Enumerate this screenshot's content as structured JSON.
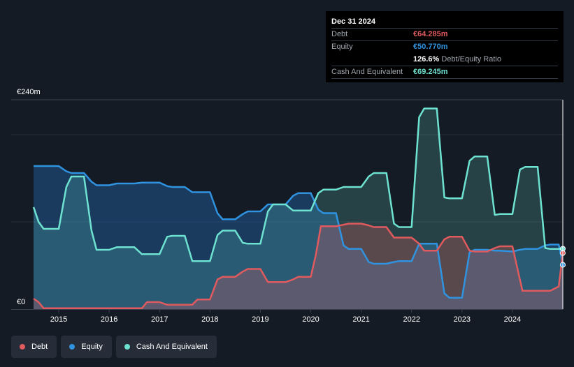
{
  "tooltip": {
    "date": "Dec 31 2024",
    "debt_label": "Debt",
    "debt_value": "€64.285m",
    "equity_label": "Equity",
    "equity_value": "€50.770m",
    "ratio_value": "126.6%",
    "ratio_label": "Debt/Equity Ratio",
    "cash_label": "Cash And Equivalent",
    "cash_value": "€69.245m"
  },
  "legend": [
    {
      "label": "Debt",
      "color": "#e05a5e"
    },
    {
      "label": "Equity",
      "color": "#2f93e0"
    },
    {
      "label": "Cash And Equivalent",
      "color": "#6ee2d0"
    }
  ],
  "chart_data": {
    "type": "area",
    "y_top_label": "€240m",
    "y_bottom_label": "€0",
    "ylim": [
      0,
      240
    ],
    "xlim": [
      2014.5,
      2025.0
    ],
    "x_ticks": [
      2015,
      2016,
      2017,
      2018,
      2019,
      2020,
      2021,
      2022,
      2023,
      2024
    ],
    "x_tick_labels": [
      "2015",
      "2016",
      "2017",
      "2018",
      "2019",
      "2020",
      "2021",
      "2022",
      "2023",
      "2024"
    ],
    "series": [
      {
        "name": "Debt",
        "color": "#e05a5e",
        "x": [
          2014.5,
          2014.6,
          2014.7,
          2015.0,
          2015.5,
          2016.0,
          2016.5,
          2016.65,
          2016.75,
          2017.0,
          2017.15,
          2017.25,
          2017.5,
          2017.65,
          2017.75,
          2018.0,
          2018.15,
          2018.25,
          2018.5,
          2018.65,
          2018.75,
          2019.0,
          2019.15,
          2019.25,
          2019.5,
          2019.65,
          2019.75,
          2020.0,
          2020.1,
          2020.2,
          2020.5,
          2020.75,
          2021.0,
          2021.15,
          2021.25,
          2021.5,
          2021.65,
          2021.75,
          2022.0,
          2022.15,
          2022.25,
          2022.5,
          2022.65,
          2022.75,
          2023.0,
          2023.15,
          2023.25,
          2023.5,
          2023.65,
          2023.75,
          2024.0,
          2024.2,
          2024.5,
          2024.75,
          2024.92,
          2025.0
        ],
        "values": [
          12,
          8,
          1,
          1,
          1,
          1,
          1,
          1,
          8,
          8,
          5,
          5,
          5,
          5,
          11,
          11,
          34,
          37,
          37,
          43,
          46,
          46,
          31,
          31,
          31,
          34,
          37,
          37,
          62,
          95,
          95,
          98,
          98,
          96,
          94,
          94,
          82,
          82,
          82,
          75,
          67,
          67,
          80,
          83,
          83,
          67,
          66,
          66,
          70,
          72,
          72,
          21,
          21,
          21,
          26,
          64.285
        ]
      },
      {
        "name": "Equity",
        "color": "#2f93e0",
        "x": [
          2014.5,
          2014.75,
          2015.0,
          2015.15,
          2015.25,
          2015.5,
          2015.65,
          2015.75,
          2016.0,
          2016.15,
          2016.25,
          2016.5,
          2016.65,
          2016.75,
          2017.0,
          2017.15,
          2017.25,
          2017.5,
          2017.65,
          2017.75,
          2018.0,
          2018.15,
          2018.25,
          2018.5,
          2018.65,
          2018.75,
          2019.0,
          2019.15,
          2019.25,
          2019.5,
          2019.65,
          2019.75,
          2020.0,
          2020.15,
          2020.25,
          2020.5,
          2020.65,
          2020.75,
          2021.0,
          2021.15,
          2021.25,
          2021.5,
          2021.65,
          2021.75,
          2022.0,
          2022.15,
          2022.25,
          2022.5,
          2022.65,
          2022.75,
          2023.0,
          2023.15,
          2023.25,
          2023.5,
          2023.65,
          2023.75,
          2024.0,
          2024.15,
          2024.25,
          2024.5,
          2024.65,
          2024.75,
          2024.92,
          2025.0
        ],
        "values": [
          164,
          164,
          164,
          158,
          156,
          156,
          146,
          142,
          142,
          144,
          144,
          144,
          145,
          145,
          145,
          141,
          140,
          140,
          134,
          134,
          134,
          110,
          103,
          103,
          109,
          112,
          112,
          120,
          120,
          120,
          130,
          133,
          133,
          114,
          110,
          110,
          73,
          69,
          69,
          54,
          52,
          52,
          54,
          55,
          55,
          75,
          75,
          75,
          18,
          13,
          13,
          65,
          68,
          68,
          67,
          67,
          66,
          68,
          69,
          69,
          73,
          74,
          74,
          50.77
        ]
      },
      {
        "name": "Cash And Equivalent",
        "color": "#6ee2d0",
        "x": [
          2014.5,
          2014.6,
          2014.7,
          2015.0,
          2015.15,
          2015.25,
          2015.5,
          2015.65,
          2015.75,
          2016.0,
          2016.15,
          2016.25,
          2016.5,
          2016.65,
          2016.75,
          2017.0,
          2017.15,
          2017.25,
          2017.5,
          2017.65,
          2017.75,
          2018.0,
          2018.15,
          2018.25,
          2018.5,
          2018.65,
          2018.75,
          2019.0,
          2019.15,
          2019.25,
          2019.5,
          2019.65,
          2019.75,
          2020.0,
          2020.15,
          2020.25,
          2020.5,
          2020.65,
          2020.75,
          2021.0,
          2021.15,
          2021.25,
          2021.5,
          2021.65,
          2021.75,
          2022.0,
          2022.15,
          2022.25,
          2022.5,
          2022.65,
          2022.75,
          2023.0,
          2023.15,
          2023.25,
          2023.5,
          2023.65,
          2023.75,
          2024.0,
          2024.15,
          2024.25,
          2024.5,
          2024.65,
          2024.75,
          2024.92,
          2025.0
        ],
        "values": [
          117,
          100,
          92,
          92,
          140,
          152,
          152,
          90,
          68,
          68,
          71,
          71,
          71,
          63,
          63,
          63,
          83,
          84,
          84,
          55,
          55,
          55,
          85,
          90,
          90,
          76,
          75,
          75,
          112,
          120,
          120,
          113,
          113,
          113,
          133,
          137,
          137,
          140,
          140,
          140,
          152,
          156,
          156,
          98,
          94,
          94,
          220,
          230,
          230,
          128,
          127,
          127,
          170,
          175,
          175,
          108,
          109,
          109,
          160,
          163,
          163,
          70,
          69,
          69,
          69.245
        ]
      }
    ]
  }
}
